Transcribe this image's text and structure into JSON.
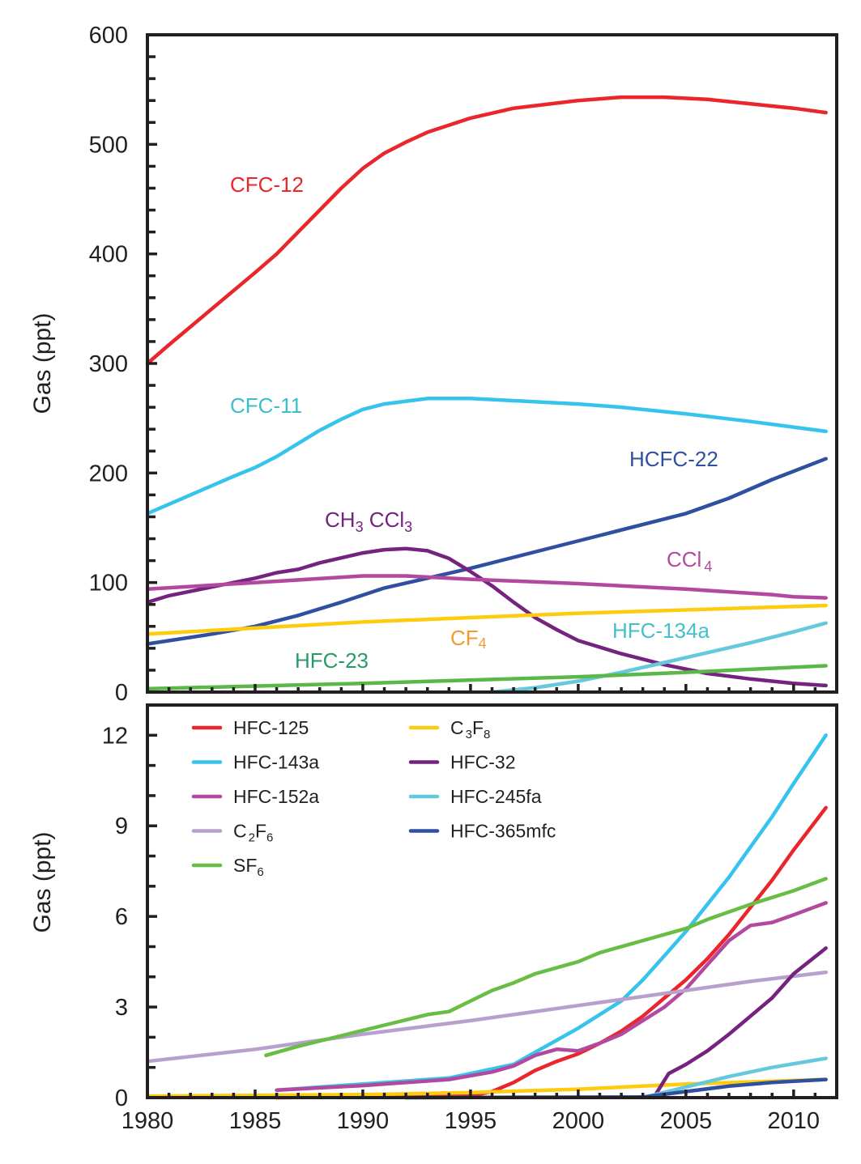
{
  "chart_data": [
    {
      "type": "line",
      "panel": "top",
      "title": "",
      "xlabel": "",
      "ylabel": "Gas (ppt)",
      "xlim": [
        1980,
        2012
      ],
      "ylim": [
        0,
        600
      ],
      "yticks": [
        0,
        100,
        200,
        300,
        400,
        500,
        600
      ],
      "ytick_labels": [
        "0",
        "100",
        "200",
        "300",
        "400",
        "500",
        "600"
      ],
      "y_minor_step": 20,
      "x_minor_step": 1,
      "grid": false,
      "series": [
        {
          "name": "CFC-12",
          "label": "CFC-12",
          "color": "#e8262b",
          "label_color": "#e8262b",
          "x": [
            1980,
            1981,
            1983,
            1985,
            1986,
            1987,
            1988,
            1989,
            1990,
            1991,
            1992,
            1993,
            1995,
            1997,
            2000,
            2002,
            2004,
            2006,
            2008,
            2010,
            2011.5
          ],
          "y": [
            300,
            317,
            350,
            383,
            400,
            420,
            440,
            460,
            478,
            492,
            502,
            511,
            524,
            533,
            540,
            543,
            543,
            541,
            537,
            533,
            529
          ]
        },
        {
          "name": "CFC-11",
          "label": "CFC-11",
          "color": "#36c3ec",
          "label_color": "#3bbfc9",
          "x": [
            1980,
            1982,
            1984,
            1985,
            1986,
            1987,
            1988,
            1989,
            1990,
            1991,
            1993,
            1995,
            1997,
            2000,
            2002,
            2005,
            2008,
            2011.5
          ],
          "y": [
            163,
            180,
            197,
            205,
            215,
            227,
            239,
            249,
            258,
            263,
            268,
            268,
            266,
            263,
            260,
            254,
            247,
            238
          ]
        },
        {
          "name": "HCFC-22",
          "label": "HCFC-22",
          "color": "#2f4fa0",
          "label_color": "#2f4fa0",
          "x": [
            1980,
            1983,
            1985,
            1987,
            1989,
            1991,
            1993,
            1995,
            1997,
            1999,
            2001,
            2003,
            2005,
            2007,
            2009,
            2011.5
          ],
          "y": [
            44,
            53,
            60,
            70,
            82,
            95,
            104,
            113,
            123,
            133,
            143,
            153,
            163,
            177,
            194,
            213
          ]
        },
        {
          "name": "CH3CCl3",
          "label_main": "CH",
          "label_sub1": "3",
          "label_mid": " CCl",
          "label_sub2": "3",
          "color": "#74237f",
          "label_color": "#74237f",
          "x": [
            1980,
            1981,
            1983,
            1985,
            1986,
            1987,
            1988,
            1990,
            1991,
            1992,
            1993,
            1994,
            1995,
            1996,
            1997,
            1998,
            1999,
            2000,
            2002,
            2004,
            2006,
            2008,
            2010,
            2011.5
          ],
          "y": [
            82,
            88,
            96,
            104,
            109,
            112,
            118,
            127,
            130,
            131,
            129,
            122,
            110,
            97,
            82,
            68,
            57,
            47,
            35,
            25,
            17,
            12,
            8,
            6
          ]
        },
        {
          "name": "CCl4",
          "label_main": "CCl",
          "label_sub": "4",
          "color": "#b3499f",
          "label_color": "#b3499f",
          "x": [
            1980,
            1985,
            1990,
            1992,
            1995,
            2000,
            2005,
            2009,
            2010,
            2011.5
          ],
          "y": [
            94,
            100,
            106,
            106,
            103,
            99,
            94,
            89,
            87,
            86
          ]
        },
        {
          "name": "CF4",
          "label_main": "CF",
          "label_sub": "4",
          "color": "#fdcc0f",
          "label_color": "#f39a32",
          "x": [
            1980,
            1990,
            2000,
            2011.5
          ],
          "y": [
            53,
            64,
            72,
            79
          ]
        },
        {
          "name": "HFC-134a",
          "label": "HFC-134a",
          "color": "#66c8dc",
          "label_color": "#45bfca",
          "x": [
            1996,
            1998,
            2000,
            2002,
            2004,
            2006,
            2008,
            2010,
            2011.5
          ],
          "y": [
            0,
            4,
            10,
            18,
            27,
            36,
            45,
            55,
            63
          ]
        },
        {
          "name": "HFC-23",
          "label": "HFC-23",
          "color": "#5bb748",
          "label_color": "#2a9a68",
          "x": [
            1980,
            1990,
            2000,
            2005,
            2011.5
          ],
          "y": [
            3,
            8,
            14,
            18,
            24
          ]
        }
      ]
    },
    {
      "type": "line",
      "panel": "bottom",
      "title": "",
      "xlabel": "",
      "ylabel": "Gas (ppt)",
      "xlim": [
        1980,
        2012
      ],
      "ylim": [
        0,
        13
      ],
      "yticks": [
        0,
        3,
        6,
        9,
        12
      ],
      "ytick_labels": [
        "0",
        "3",
        "6",
        "9",
        "12"
      ],
      "y_minor_step": 1,
      "x_minor_step": 1,
      "xticks": [
        1980,
        1985,
        1990,
        1995,
        2000,
        2005,
        2010
      ],
      "xtick_labels": [
        "1980",
        "1985",
        "1990",
        "1995",
        "2000",
        "2005",
        "2010"
      ],
      "grid": false,
      "legend_position": "top-left",
      "series": [
        {
          "name": "HFC-125",
          "color": "#e8262b",
          "x": [
            1986,
            1995,
            1996,
            1997,
            1998,
            1999,
            2000,
            2001,
            2002,
            2003,
            2004,
            2005,
            2006,
            2007,
            2008,
            2009,
            2010,
            2011.5
          ],
          "y": [
            0,
            0.05,
            0.2,
            0.5,
            0.9,
            1.2,
            1.45,
            1.8,
            2.2,
            2.7,
            3.3,
            3.9,
            4.6,
            5.4,
            6.3,
            7.2,
            8.2,
            9.6
          ]
        },
        {
          "name": "HFC-143a",
          "color": "#36c3ec",
          "x": [
            1986,
            1990,
            1994,
            1997,
            1998,
            2000,
            2002,
            2003,
            2004,
            2005,
            2006,
            2007,
            2008,
            2009,
            2010,
            2011.5
          ],
          "y": [
            0.25,
            0.45,
            0.65,
            1.1,
            1.5,
            2.3,
            3.2,
            3.9,
            4.7,
            5.5,
            6.4,
            7.3,
            8.3,
            9.3,
            10.4,
            12.0
          ]
        },
        {
          "name": "HFC-152a",
          "color": "#b3499f",
          "x": [
            1986,
            1990,
            1994,
            1996,
            1997,
            1998,
            1999,
            2000,
            2001,
            2002,
            2003,
            2004,
            2005,
            2006,
            2007,
            2008,
            2009,
            2010,
            2011.5
          ],
          "y": [
            0.25,
            0.4,
            0.6,
            0.85,
            1.05,
            1.4,
            1.6,
            1.55,
            1.8,
            2.1,
            2.55,
            3.0,
            3.6,
            4.4,
            5.2,
            5.7,
            5.8,
            6.05,
            6.45
          ]
        },
        {
          "name": "C2F6",
          "label_main": "C",
          "label_sub1": "2",
          "label_mid": "F",
          "label_sub2": "6",
          "color": "#b7a0cd",
          "x": [
            1980,
            1985,
            1990,
            1995,
            2000,
            2005,
            2008,
            2011.5
          ],
          "y": [
            1.2,
            1.6,
            2.1,
            2.55,
            3.05,
            3.55,
            3.85,
            4.15
          ]
        },
        {
          "name": "SF6",
          "label_main": "SF",
          "label_sub": "6",
          "color": "#68bd45",
          "x": [
            1985.5,
            1987,
            1989,
            1991,
            1993,
            1994,
            1995,
            1996,
            1997,
            1998,
            2000,
            2001,
            2003,
            2005,
            2006,
            2008,
            2010,
            2011.5
          ],
          "y": [
            1.4,
            1.7,
            2.05,
            2.4,
            2.75,
            2.85,
            3.2,
            3.55,
            3.8,
            4.1,
            4.5,
            4.8,
            5.2,
            5.6,
            5.9,
            6.4,
            6.85,
            7.25
          ]
        },
        {
          "name": "C3F8",
          "label_main": "C",
          "label_sub1": "3",
          "label_mid": "F",
          "label_sub2": "8",
          "color": "#fdcc0f",
          "x": [
            1980,
            1990,
            1995,
            2000,
            2005,
            2008,
            2011.5
          ],
          "y": [
            0.05,
            0.1,
            0.17,
            0.28,
            0.45,
            0.52,
            0.6
          ]
        },
        {
          "name": "HFC-32",
          "color": "#74237f",
          "x": [
            2003.5,
            2004.2,
            2005,
            2006,
            2007,
            2008,
            2009,
            2010,
            2011.5
          ],
          "y": [
            0,
            0.8,
            1.1,
            1.55,
            2.1,
            2.7,
            3.3,
            4.1,
            4.95
          ]
        },
        {
          "name": "HFC-245fa",
          "color": "#66c8dc",
          "x": [
            2003,
            2005,
            2007,
            2009,
            2011.5
          ],
          "y": [
            0,
            0.35,
            0.7,
            1.0,
            1.3
          ]
        },
        {
          "name": "HFC-365mfc",
          "color": "#2f4fa0",
          "x": [
            1992,
            2003,
            2005,
            2007,
            2009,
            2011.5
          ],
          "y": [
            0,
            0.02,
            0.2,
            0.38,
            0.5,
            0.6
          ]
        }
      ]
    }
  ]
}
